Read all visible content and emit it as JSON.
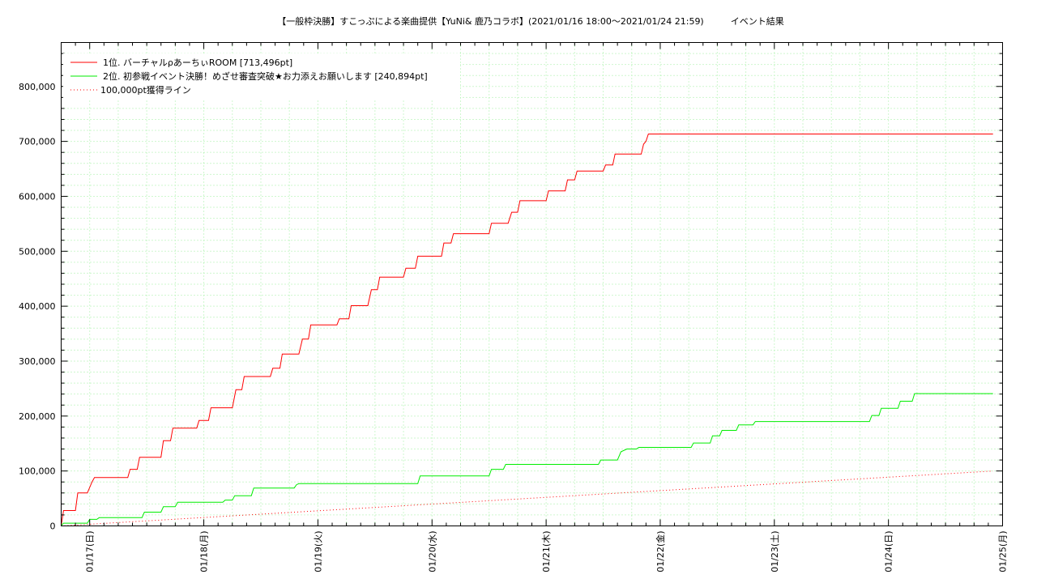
{
  "chart_data": {
    "type": "line",
    "title": "【一般枠決勝】すこっぷによる楽曲提供【YuNi& 鹿乃コラボ】(2021/01/16 18:00〜2021/01/24 21:59)　　　イベント結果",
    "xlabel": "",
    "ylabel": "",
    "x_range": [
      "2021/01/16 18:00",
      "2021/01/25 00:00"
    ],
    "ylim": [
      0,
      880000
    ],
    "y_ticks": [
      0,
      100000,
      200000,
      300000,
      400000,
      500000,
      600000,
      700000,
      800000
    ],
    "y_tick_labels": [
      "0",
      "100,000",
      "200,000",
      "300,000",
      "400,000",
      "500,000",
      "600,000",
      "700,000",
      "800,000"
    ],
    "x_tick_labels": [
      "01/17(日)",
      "01/18(月)",
      "01/19(火)",
      "01/20(水)",
      "01/21(木)",
      "01/22(金)",
      "01/23(土)",
      "01/24(日)",
      "01/25(月)"
    ],
    "grid": true,
    "legend_position": "top-left",
    "series": [
      {
        "name": "1位. バーチャルρあーちぃROOM [713,496pt]",
        "color": "#ff0000",
        "style": "solid",
        "points": [
          [
            "2021/01/16 18:00",
            0
          ],
          [
            "2021/01/16 18:30",
            28000
          ],
          [
            "2021/01/16 21:00",
            28000
          ],
          [
            "2021/01/16 21:30",
            60000
          ],
          [
            "2021/01/16 23:30",
            60000
          ],
          [
            "2021/01/17 00:30",
            80000
          ],
          [
            "2021/01/17 01:00",
            88000
          ],
          [
            "2021/01/17 08:00",
            88000
          ],
          [
            "2021/01/17 08:30",
            103000
          ],
          [
            "2021/01/17 10:00",
            103000
          ],
          [
            "2021/01/17 10:30",
            125000
          ],
          [
            "2021/01/17 15:00",
            125000
          ],
          [
            "2021/01/17 15:30",
            155000
          ],
          [
            "2021/01/17 17:00",
            155000
          ],
          [
            "2021/01/17 17:30",
            178000
          ],
          [
            "2021/01/17 22:30",
            178000
          ],
          [
            "2021/01/17 23:00",
            192000
          ],
          [
            "2021/01/18 01:00",
            192000
          ],
          [
            "2021/01/18 01:30",
            215000
          ],
          [
            "2021/01/18 06:00",
            215000
          ],
          [
            "2021/01/18 06:45",
            248000
          ],
          [
            "2021/01/18 08:00",
            248000
          ],
          [
            "2021/01/18 08:30",
            272000
          ],
          [
            "2021/01/18 14:00",
            272000
          ],
          [
            "2021/01/18 14:30",
            287000
          ],
          [
            "2021/01/18 16:00",
            287000
          ],
          [
            "2021/01/18 16:30",
            313000
          ],
          [
            "2021/01/18 20:00",
            313000
          ],
          [
            "2021/01/18 20:45",
            340000
          ],
          [
            "2021/01/18 22:00",
            340000
          ],
          [
            "2021/01/18 22:30",
            366000
          ],
          [
            "2021/01/19 04:00",
            366000
          ],
          [
            "2021/01/19 04:30",
            377000
          ],
          [
            "2021/01/19 06:30",
            377000
          ],
          [
            "2021/01/19 07:00",
            401000
          ],
          [
            "2021/01/19 10:30",
            401000
          ],
          [
            "2021/01/19 11:15",
            430000
          ],
          [
            "2021/01/19 12:30",
            430000
          ],
          [
            "2021/01/19 13:00",
            453000
          ],
          [
            "2021/01/19 18:00",
            453000
          ],
          [
            "2021/01/19 18:30",
            469000
          ],
          [
            "2021/01/19 20:30",
            469000
          ],
          [
            "2021/01/19 21:00",
            491000
          ],
          [
            "2021/01/20 02:00",
            491000
          ],
          [
            "2021/01/20 02:30",
            515000
          ],
          [
            "2021/01/20 04:00",
            515000
          ],
          [
            "2021/01/20 04:30",
            532000
          ],
          [
            "2021/01/20 12:00",
            532000
          ],
          [
            "2021/01/20 12:30",
            551000
          ],
          [
            "2021/01/20 16:00",
            551000
          ],
          [
            "2021/01/20 16:45",
            571000
          ],
          [
            "2021/01/20 18:00",
            571000
          ],
          [
            "2021/01/20 18:30",
            592000
          ],
          [
            "2021/01/21 00:00",
            592000
          ],
          [
            "2021/01/21 00:30",
            610000
          ],
          [
            "2021/01/21 04:00",
            610000
          ],
          [
            "2021/01/21 04:30",
            630000
          ],
          [
            "2021/01/21 06:00",
            630000
          ],
          [
            "2021/01/21 06:30",
            646000
          ],
          [
            "2021/01/21 12:00",
            646000
          ],
          [
            "2021/01/21 12:30",
            657000
          ],
          [
            "2021/01/21 14:00",
            657000
          ],
          [
            "2021/01/21 14:30",
            677000
          ],
          [
            "2021/01/21 20:00",
            677000
          ],
          [
            "2021/01/21 20:30",
            695000
          ],
          [
            "2021/01/21 21:00",
            700000
          ],
          [
            "2021/01/21 21:30",
            713496
          ],
          [
            "2021/01/24 21:59",
            713496
          ]
        ]
      },
      {
        "name": "2位. 初参戦イベント決勝！めざせ審査突破★お力添えお願いします [240,894pt]",
        "color": "#00ee00",
        "style": "solid",
        "points": [
          [
            "2021/01/16 18:00",
            0
          ],
          [
            "2021/01/16 18:30",
            5000
          ],
          [
            "2021/01/16 23:30",
            5000
          ],
          [
            "2021/01/17 00:00",
            12000
          ],
          [
            "2021/01/17 01:30",
            12000
          ],
          [
            "2021/01/17 02:00",
            15000
          ],
          [
            "2021/01/17 11:00",
            15000
          ],
          [
            "2021/01/17 11:30",
            25000
          ],
          [
            "2021/01/17 15:00",
            25000
          ],
          [
            "2021/01/17 15:30",
            35000
          ],
          [
            "2021/01/17 18:00",
            35000
          ],
          [
            "2021/01/17 18:30",
            43000
          ],
          [
            "2021/01/18 04:00",
            43000
          ],
          [
            "2021/01/18 04:30",
            47000
          ],
          [
            "2021/01/18 06:00",
            47000
          ],
          [
            "2021/01/18 06:30",
            55000
          ],
          [
            "2021/01/18 10:00",
            55000
          ],
          [
            "2021/01/18 10:30",
            69000
          ],
          [
            "2021/01/18 19:00",
            69000
          ],
          [
            "2021/01/18 19:30",
            75000
          ],
          [
            "2021/01/18 20:00",
            77000
          ],
          [
            "2021/01/19 21:00",
            77000
          ],
          [
            "2021/01/19 21:30",
            91000
          ],
          [
            "2021/01/20 12:00",
            91000
          ],
          [
            "2021/01/20 12:30",
            103000
          ],
          [
            "2021/01/20 15:00",
            103000
          ],
          [
            "2021/01/20 15:30",
            112000
          ],
          [
            "2021/01/21 11:00",
            112000
          ],
          [
            "2021/01/21 11:30",
            120000
          ],
          [
            "2021/01/21 15:00",
            120000
          ],
          [
            "2021/01/21 15:45",
            135000
          ],
          [
            "2021/01/21 17:00",
            140000
          ],
          [
            "2021/01/21 19:00",
            140000
          ],
          [
            "2021/01/21 19:30",
            143000
          ],
          [
            "2021/01/22 06:30",
            143000
          ],
          [
            "2021/01/22 07:00",
            151000
          ],
          [
            "2021/01/22 10:30",
            151000
          ],
          [
            "2021/01/22 11:00",
            164000
          ],
          [
            "2021/01/22 12:30",
            164000
          ],
          [
            "2021/01/22 13:00",
            174000
          ],
          [
            "2021/01/22 16:00",
            174000
          ],
          [
            "2021/01/22 16:30",
            184000
          ],
          [
            "2021/01/22 19:30",
            184000
          ],
          [
            "2021/01/22 20:00",
            190000
          ],
          [
            "2021/01/23 20:00",
            190000
          ],
          [
            "2021/01/23 20:30",
            201000
          ],
          [
            "2021/01/23 22:00",
            201000
          ],
          [
            "2021/01/23 22:30",
            214000
          ],
          [
            "2021/01/24 02:00",
            214000
          ],
          [
            "2021/01/24 02:30",
            227000
          ],
          [
            "2021/01/24 05:00",
            227000
          ],
          [
            "2021/01/24 05:30",
            240894
          ],
          [
            "2021/01/24 21:59",
            240894
          ]
        ]
      },
      {
        "name": "100,000pt獲得ライン",
        "color": "#ff0000",
        "style": "dotted",
        "points": [
          [
            "2021/01/16 18:00",
            0
          ],
          [
            "2021/01/24 21:59",
            100000
          ]
        ]
      }
    ]
  }
}
